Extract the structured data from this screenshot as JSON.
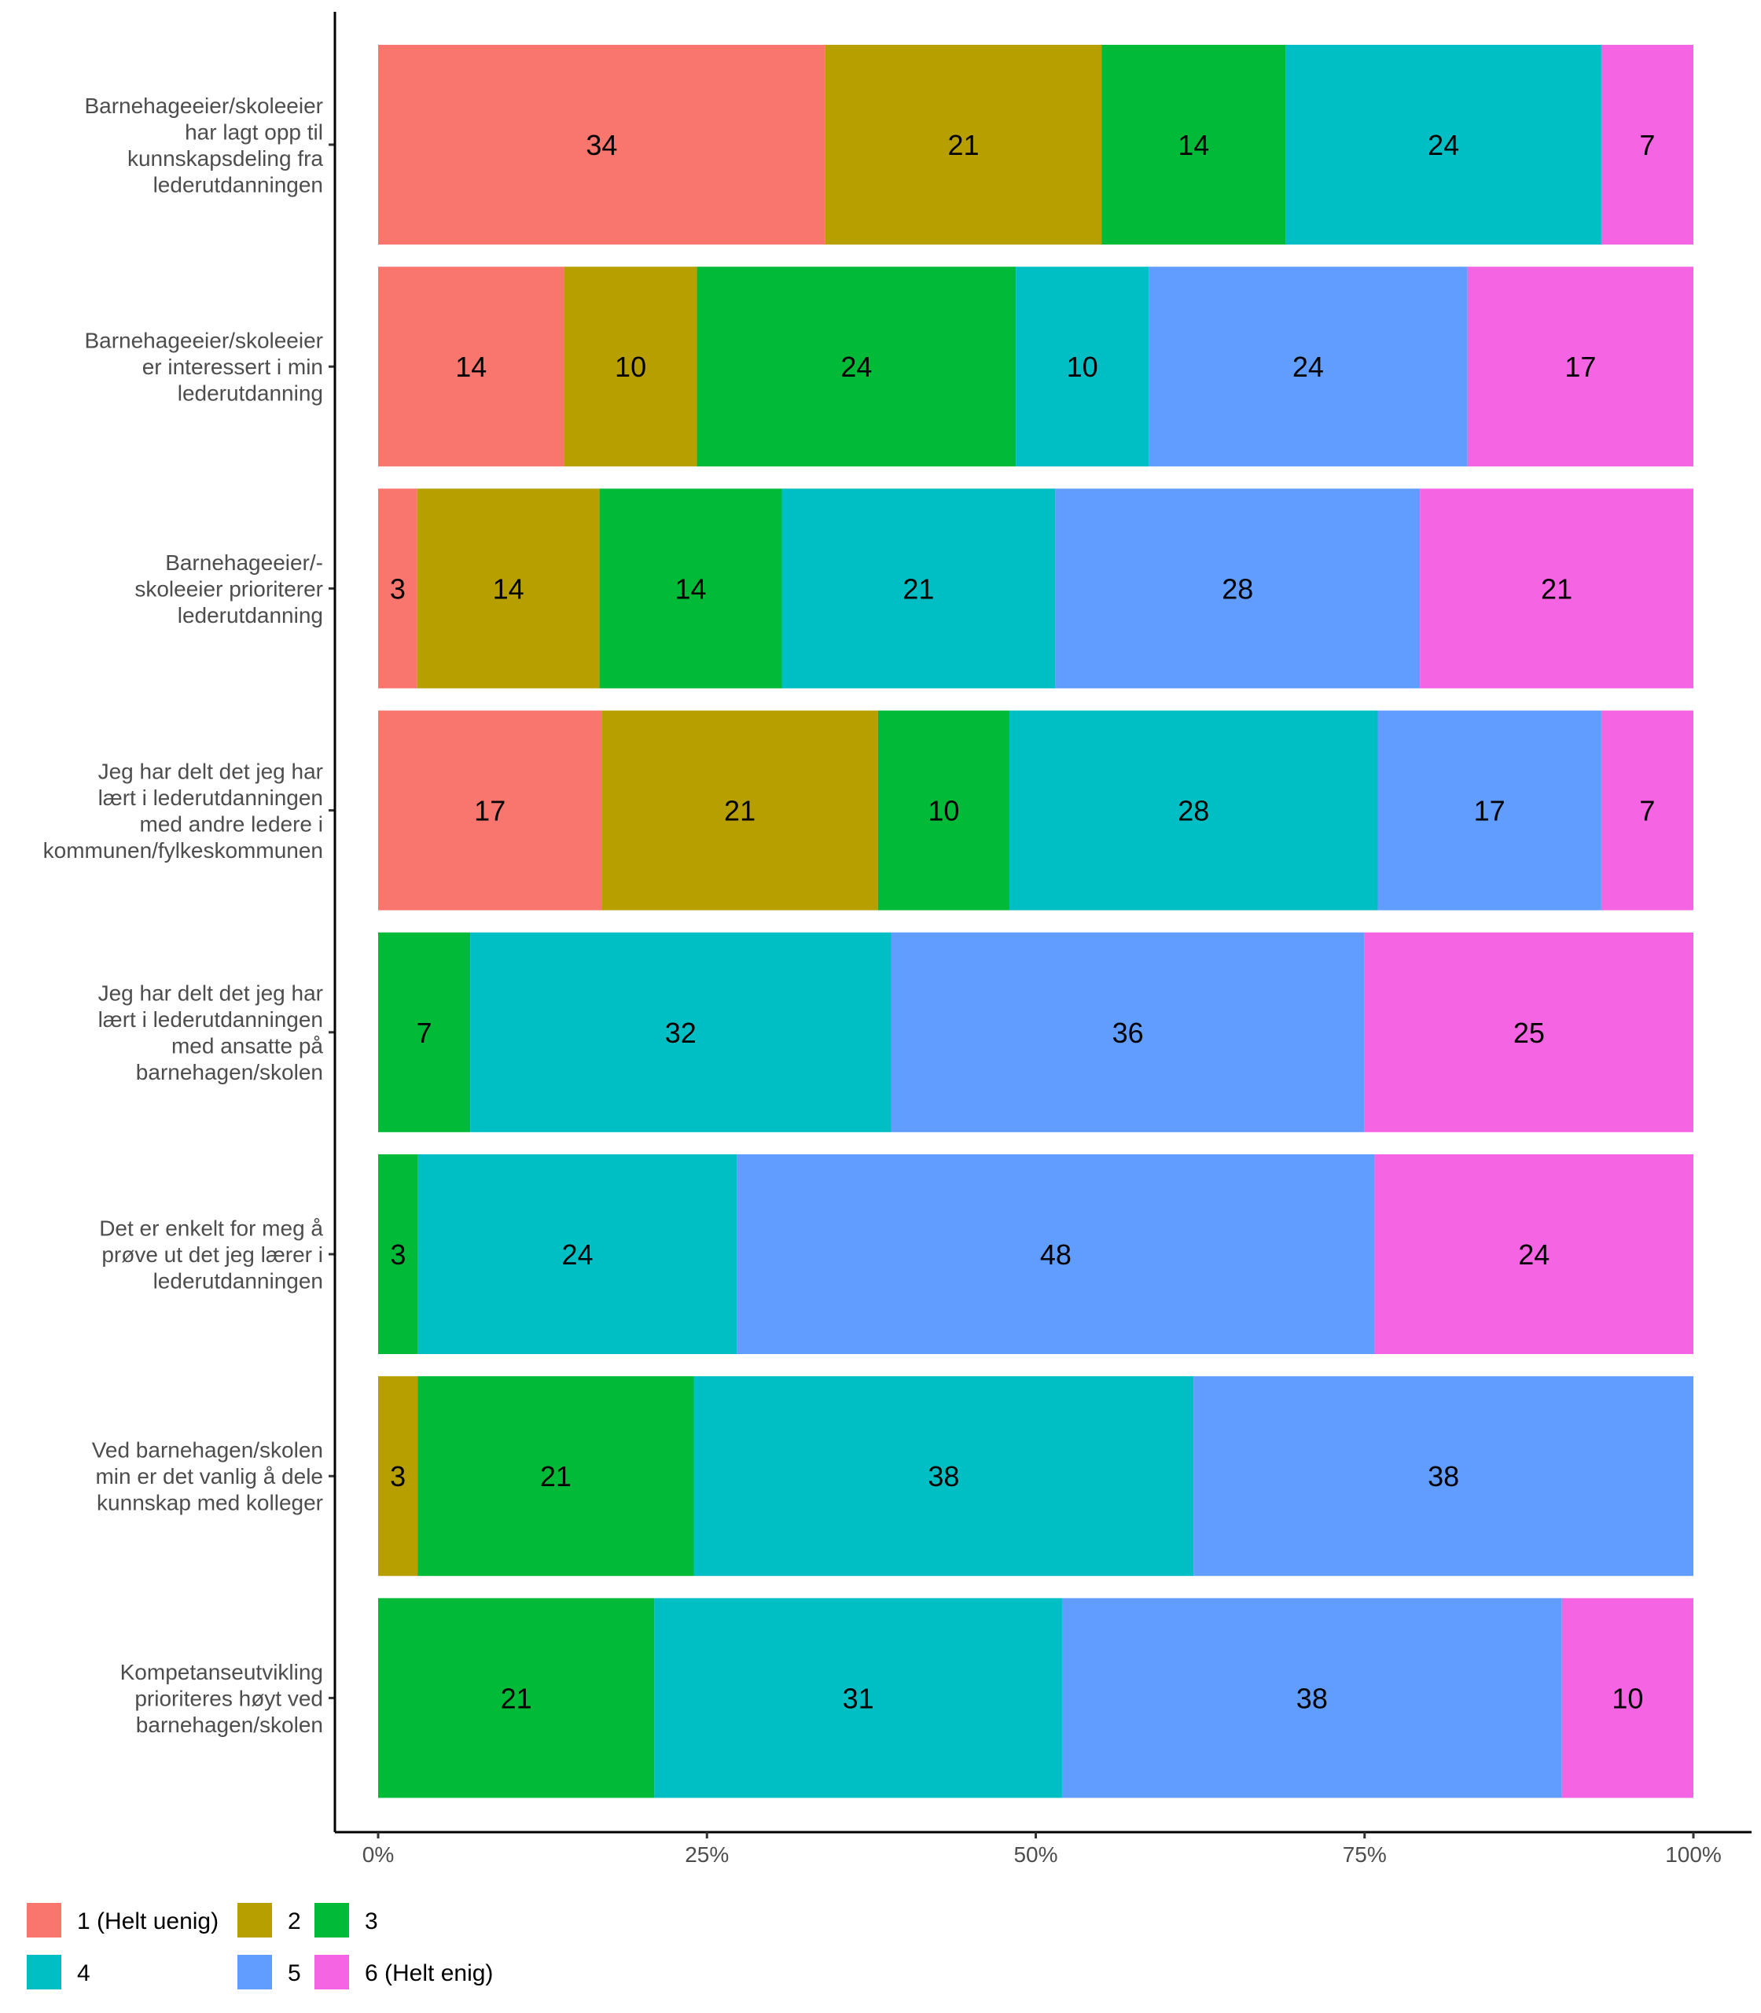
{
  "chart_data": {
    "type": "bar",
    "orientation": "horizontal",
    "stacked": "percent",
    "categories": [
      "Barnehageeier/skoleeier har lagt opp til kunnskapsdeling fra lederutdanningen",
      "Barnehageeier/skoleeier er interessert i min lederutdanning",
      "Barnehageeier/- skoleeier prioriterer lederutdanning",
      "Jeg har delt det jeg har lært i lederutdanningen med andre ledere i kommunen/fylkeskommunen",
      "Jeg har delt det jeg har lært i lederutdanningen med ansatte på barnehagen/skolen",
      "Det er enkelt for meg å prøve ut det jeg lærer i lederutdanningen",
      "Ved barnehagen/skolen min er det vanlig å dele kunnskap med kolleger",
      "Kompetanseutvikling prioriteres høyt ved barnehagen/skolen"
    ],
    "category_lines": [
      [
        "Barnehageeier/skoleeier",
        "har lagt opp til",
        "kunnskapsdeling fra",
        "lederutdanningen"
      ],
      [
        "Barnehageeier/skoleeier",
        "er interessert i min",
        "lederutdanning"
      ],
      [
        "Barnehageeier/-",
        "skoleeier prioriterer",
        "lederutdanning"
      ],
      [
        "Jeg har delt det jeg har",
        "lært i lederutdanningen",
        "med andre ledere i",
        "kommunen/fylkeskommunen"
      ],
      [
        "Jeg har delt det jeg har",
        "lært i lederutdanningen",
        "med ansatte på",
        "barnehagen/skolen"
      ],
      [
        "Det er enkelt for meg å",
        "prøve ut det jeg lærer i",
        "lederutdanningen"
      ],
      [
        "Ved barnehagen/skolen",
        "min er det vanlig å dele",
        "kunnskap med kolleger"
      ],
      [
        "Kompetanseutvikling",
        "prioriteres høyt ved",
        "barnehagen/skolen"
      ]
    ],
    "series": [
      {
        "name": "1 (Helt uenig)",
        "color": "#F8766D",
        "values": [
          34,
          14,
          3,
          17,
          0,
          0,
          0,
          0
        ]
      },
      {
        "name": "2",
        "color": "#B79F00",
        "values": [
          21,
          10,
          14,
          21,
          0,
          0,
          3,
          0
        ]
      },
      {
        "name": "3",
        "color": "#00BA38",
        "values": [
          14,
          24,
          14,
          10,
          7,
          3,
          21,
          21
        ]
      },
      {
        "name": "4",
        "color": "#00BFC4",
        "values": [
          24,
          10,
          21,
          28,
          32,
          24,
          38,
          31
        ]
      },
      {
        "name": "5",
        "color": "#619CFF",
        "values": [
          0,
          24,
          28,
          17,
          36,
          48,
          38,
          38
        ]
      },
      {
        "name": "6 (Helt enig)",
        "color": "#F564E3",
        "values": [
          7,
          17,
          21,
          7,
          25,
          24,
          0,
          10
        ]
      }
    ],
    "xlim": [
      0,
      100
    ],
    "x_ticks": [
      "0%",
      "25%",
      "50%",
      "75%",
      "100%"
    ],
    "xlabel": "",
    "ylabel": "",
    "grid": false,
    "legend_position": "bottom-left"
  }
}
